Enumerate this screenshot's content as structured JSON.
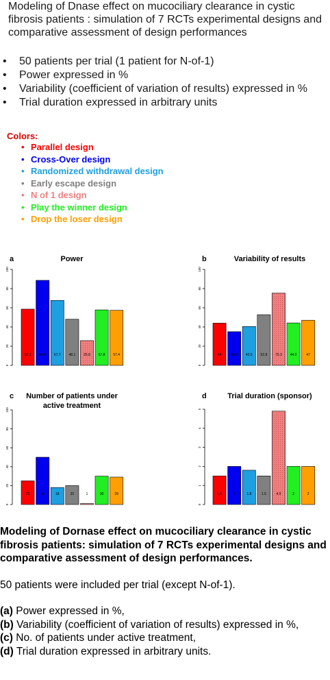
{
  "header": {
    "title": "Modeling of Dnase effect on mucociliary clearance in cystic fibrosis patients : simulation of 7 RCTs experimental designs and comparative assessment of design performances"
  },
  "bullets": [
    "50 patients per trial (1 patient for N-of-1)",
    "Power expressed in %",
    "Variability (coefficient of variation of results) expressed in %",
    "Trial duration expressed in arbitrary units"
  ],
  "legend": {
    "title": "Colors:",
    "bullet": "•",
    "items": [
      {
        "label": "Parallel design",
        "color": "#ff0000"
      },
      {
        "label": "Cross-Over design",
        "color": "#0000ee"
      },
      {
        "label": "Randomized withdrawal design",
        "color": "#1e9fe0"
      },
      {
        "label": "Early escape design",
        "color": "#808080"
      },
      {
        "label": "N of 1 design",
        "color": "#f08080"
      },
      {
        "label": "Play the winner design",
        "color": "#22ee22"
      },
      {
        "label": "Drop the loser design",
        "color": "#ffa000"
      }
    ]
  },
  "chart_data": [
    {
      "type": "bar",
      "panel_letter": "a",
      "title": "Power",
      "categories": [
        "Parallel design",
        "Cross-Over design",
        "Randomized withdrawal design",
        "Early escape design",
        "N of 1 design",
        "Play the winner design",
        "Drop the loser design"
      ],
      "values": [
        58.6,
        88.6,
        67.7,
        48.1,
        25.8,
        57.8,
        57.4
      ],
      "value_labels": [
        "58.6",
        "88.6",
        "67.7",
        "48.1",
        "25.8",
        "57.8",
        "57.4"
      ],
      "ylim": [
        0,
        100
      ],
      "yticks": [
        0,
        20,
        40,
        60,
        80,
        100
      ],
      "ytick_labels": [
        "0",
        "20",
        "40",
        "60",
        "80",
        "100"
      ]
    },
    {
      "type": "bar",
      "panel_letter": "b",
      "title": "Variability of results",
      "categories": [
        "Parallel design",
        "Cross-Over design",
        "Randomized withdrawal design",
        "Early escape design",
        "N of 1 design",
        "Play the winner design",
        "Drop the loser design"
      ],
      "values": [
        44,
        35.1,
        40.5,
        52.8,
        75.3,
        44.2,
        47
      ],
      "value_labels": [
        "44",
        "35.1",
        "40.5",
        "52.8",
        "75.3",
        "44.2",
        "47"
      ],
      "ylim": [
        0,
        100
      ],
      "yticks": [
        0,
        20,
        40,
        60,
        80,
        100
      ],
      "ytick_labels": [
        "0",
        "20",
        "40",
        "60",
        "80",
        "100"
      ]
    },
    {
      "type": "bar",
      "panel_letter": "c",
      "title": "Number of patients under active treatment",
      "categories": [
        "Parallel design",
        "Cross-Over design",
        "Randomized withdrawal design",
        "Early escape design",
        "N of 1 design",
        "Play the winner design",
        "Drop the loser design"
      ],
      "values": [
        25,
        50,
        18,
        20,
        1,
        30,
        29
      ],
      "value_labels": [
        "25",
        "50",
        "18",
        "20",
        "1",
        "30",
        "29"
      ],
      "ylim": [
        0,
        100
      ],
      "yticks": [
        0,
        20,
        40,
        60,
        80,
        100
      ],
      "ytick_labels": [
        "0",
        "20",
        "40",
        "60",
        "80",
        "100"
      ]
    },
    {
      "type": "bar",
      "panel_letter": "d",
      "title": "Trial duration (sponsor)",
      "categories": [
        "Parallel design",
        "Cross-Over design",
        "Randomized withdrawal design",
        "Early escape design",
        "N of 1 design",
        "Play the winner design",
        "Drop the loser design"
      ],
      "values": [
        1.5,
        2,
        1.8,
        1.5,
        4.9,
        2,
        2
      ],
      "value_labels": [
        "1.5",
        "2",
        "1.8",
        "1.5",
        "4.9",
        "2",
        "2"
      ],
      "ylim": [
        0,
        5
      ],
      "yticks": [
        0,
        1,
        2,
        3,
        4,
        5
      ],
      "ytick_labels": [
        "0",
        "1",
        "2",
        "3",
        "4",
        "5"
      ]
    }
  ],
  "caption": {
    "heading": "Modeling of Dornase effect on mucociliary clearance in cystic fibrosis patients: simulation of 7 RCTs experimental designs and comparative assessment of design performances.",
    "note": "50 patients were included per trial (except N-of-1).",
    "items": [
      {
        "tag": "(a)",
        "text": " Power expressed in %,"
      },
      {
        "tag": "(b)",
        "text": " Variability (coefficient of variation of results) expressed in %,"
      },
      {
        "tag": "(c)",
        "text": " No. of patients under active treatment,"
      },
      {
        "tag": "(d)",
        "text": " Trial duration expressed in arbitrary units."
      }
    ]
  }
}
